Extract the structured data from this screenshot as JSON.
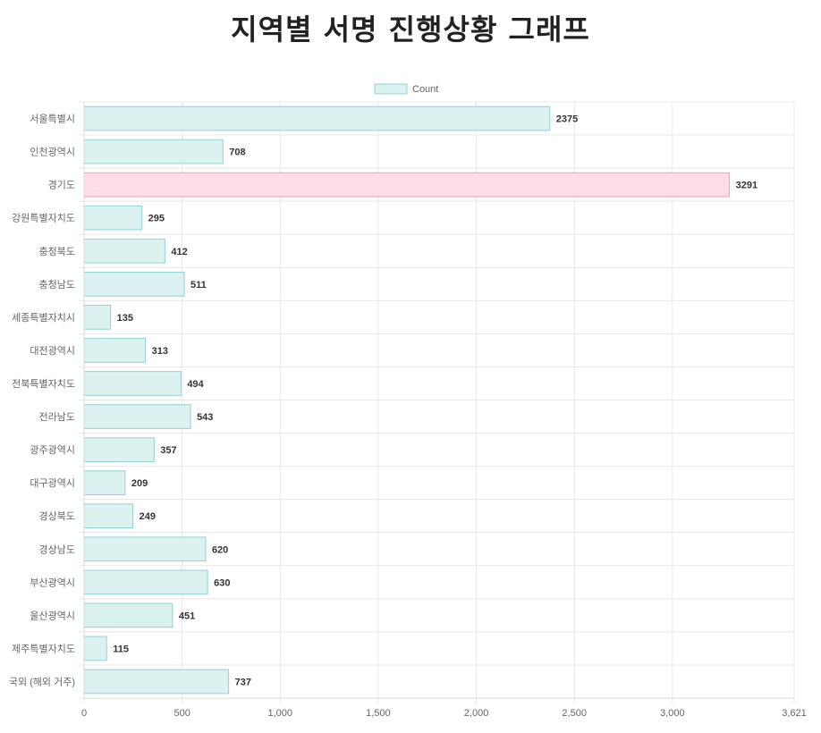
{
  "chart_data": {
    "type": "bar",
    "orientation": "horizontal",
    "title": "지역별 서명 진행상황 그래프",
    "categories": [
      "서울특별시",
      "인천광역시",
      "경기도",
      "강원특별자치도",
      "충청북도",
      "충청남도",
      "세종특별자치시",
      "대전광역시",
      "전북특별자치도",
      "전라남도",
      "광주광역시",
      "대구광역시",
      "경상북도",
      "경상남도",
      "부산광역시",
      "울산광역시",
      "제주특별자치도",
      "국외 (해외 거주)"
    ],
    "series": [
      {
        "name": "Count",
        "values": [
          2375,
          708,
          3291,
          295,
          412,
          511,
          135,
          313,
          494,
          543,
          357,
          209,
          249,
          620,
          630,
          451,
          115,
          737
        ]
      }
    ],
    "highlight_index": 2,
    "xlim": [
      0,
      3621
    ],
    "x_ticks": [
      0,
      500,
      1000,
      1500,
      2000,
      2500,
      3000,
      3621
    ],
    "x_tick_labels": [
      "0",
      "500",
      "1,000",
      "1,500",
      "2,000",
      "2,500",
      "3,000",
      "3,621"
    ],
    "grid": true,
    "legend_position": "top",
    "colors": {
      "bar_fill": "#dbf2f0",
      "bar_stroke": "#8fd3d0",
      "highlight_fill": "#ffdde6",
      "highlight_stroke": "#ec9fb5",
      "grid": "#e8e8e8"
    }
  }
}
